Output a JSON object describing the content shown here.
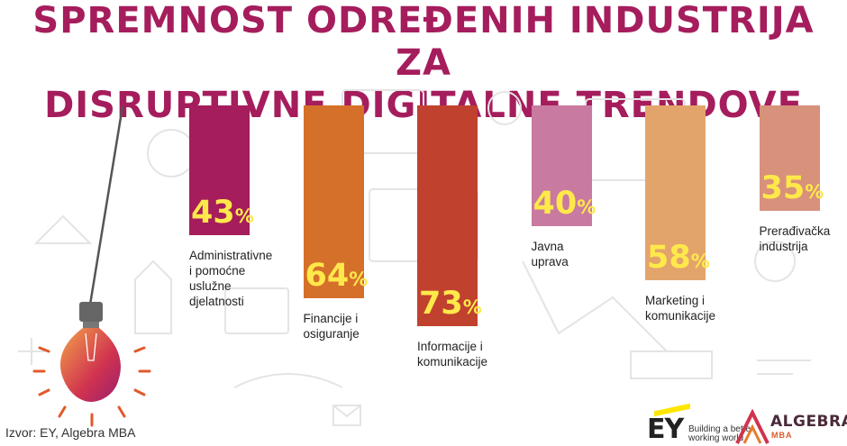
{
  "title": {
    "line1": "SPREMNOST ODREĐENIH INDUSTRIJA ZA",
    "line2": "DISRUPTIVNE DIGITALNE TRENDOVE"
  },
  "chart_data": {
    "type": "bar",
    "title": "SPREMNOST ODREĐENIH INDUSTRIJA ZA DISRUPTIVNE DIGITALNE TRENDOVE",
    "unit": "%",
    "ylim": [
      0,
      100
    ],
    "categories": [
      "Administrativne\ni pomoćne\nuslužne\ndjelatnosti",
      "Financije i\nosiguranje",
      "Informacije i\nkomunikacije",
      "Javna\nuprava",
      "Marketing i\nkomunikacije",
      "Prerađivačka\nindustrija"
    ],
    "values": [
      43,
      64,
      73,
      40,
      58,
      35
    ],
    "colors": [
      "#a51d5c",
      "#d5702a",
      "#c0412e",
      "#c97aa0",
      "#e3a46b",
      "#d8917a"
    ],
    "value_color": "#ffe94a"
  },
  "source": "Izvor: EY, Algebra MBA",
  "logos": {
    "ey": {
      "mark": "EY",
      "tagline": "Building a better\nworking world"
    },
    "algebra": {
      "name": "ALGEBRA",
      "sub": "MBA"
    }
  }
}
